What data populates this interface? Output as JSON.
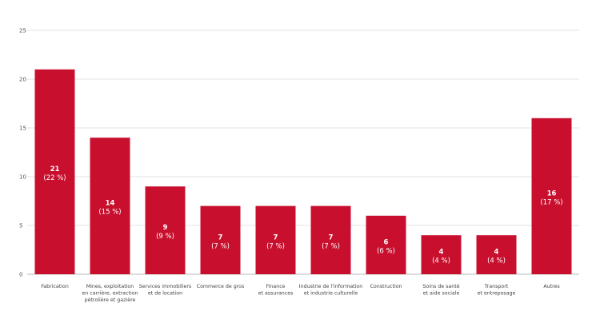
{
  "chart_data": {
    "type": "bar",
    "title": "",
    "xlabel": "",
    "ylabel": "",
    "ylim": [
      0,
      25
    ],
    "yticks": [
      0,
      5,
      10,
      15,
      20,
      25
    ],
    "grid": true,
    "bar_color": "#c8102e",
    "categories": [
      [
        "Fabrication"
      ],
      [
        "Mines, exploitation",
        "en carrière, extraction",
        "pétrolière et gazière"
      ],
      [
        "Services immobiliers",
        "et de location"
      ],
      [
        "Commerce de gros"
      ],
      [
        "Finance",
        "et assurances"
      ],
      [
        "Industrie de l'information",
        "et industrie culturelle"
      ],
      [
        "Construction"
      ],
      [
        "Soins de santé",
        "et aide sociale"
      ],
      [
        "Transport",
        "et entreposage"
      ],
      [
        "Autres"
      ]
    ],
    "values": [
      21,
      14,
      9,
      7,
      7,
      7,
      6,
      4,
      4,
      16
    ],
    "percent_labels": [
      "(22 %)",
      "(15 %)",
      "(9 %)",
      "(7 %)",
      "(7 %)",
      "(7 %)",
      "(6 %)",
      "(4 %)",
      "(4 %)",
      "(17 %)"
    ],
    "value_labels": [
      "21",
      "14",
      "9",
      "7",
      "7",
      "7",
      "6",
      "4",
      "4",
      "16"
    ]
  }
}
